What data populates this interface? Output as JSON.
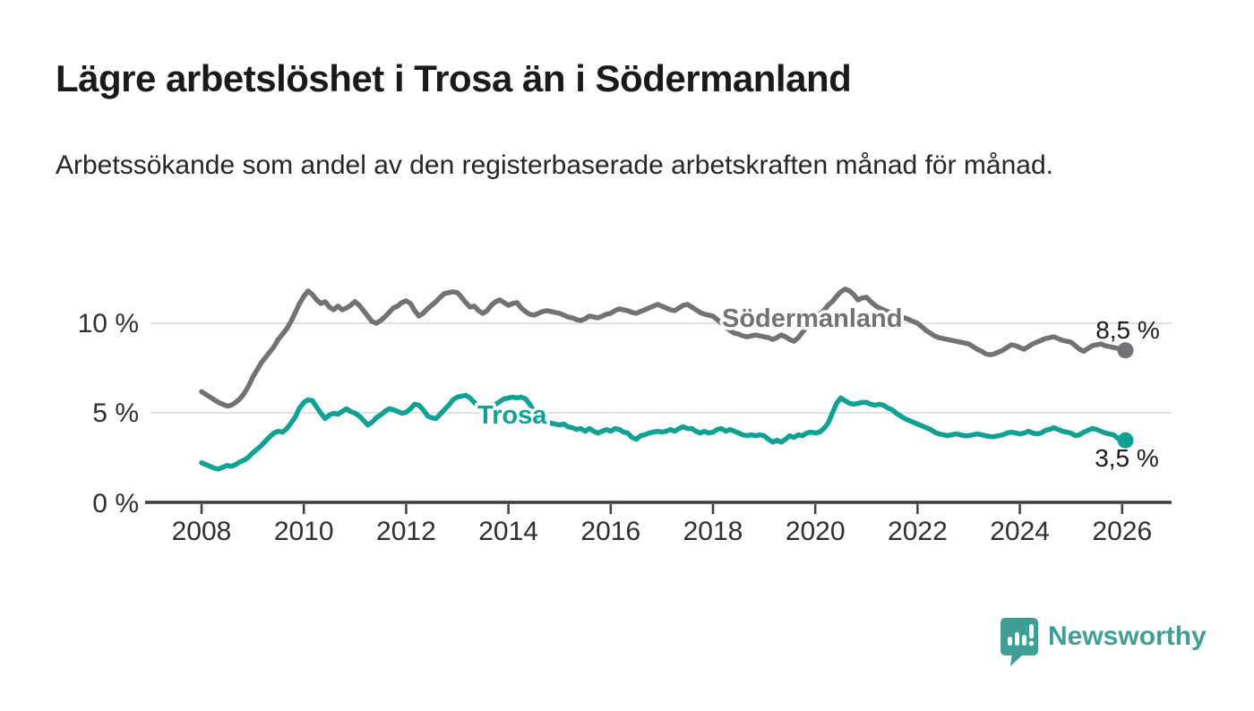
{
  "header": {
    "title": "Lägre arbetslöshet i Trosa än i Södermanland",
    "subtitle": "Arbetssökande som andel av den registerbaserade arbetskraften månad för månad."
  },
  "footer": {
    "brand": "Newsworthy",
    "brand_color": "#3f9f96",
    "logo_icon": "bar-chart-speech-bubble-icon"
  },
  "chart_data": {
    "type": "line",
    "title": "Lägre arbetslöshet i Trosa än i Södermanland",
    "subtitle": "Arbetssökande som andel av den registerbaserade arbetskraften månad för månad.",
    "unit": "percent",
    "frequency": "monthly",
    "start_year": 2008,
    "start_month": 1,
    "end_year": 2026,
    "end_month": 2,
    "grid": "horizontal",
    "legend_position": "inline-labels",
    "x_domain": [
      2006.9,
      2027.0
    ],
    "ylim": [
      0,
      12.8
    ],
    "x_tick_labels": [
      "2008",
      "2010",
      "2012",
      "2014",
      "2016",
      "2018",
      "2020",
      "2022",
      "2024",
      "2026"
    ],
    "y_tick_labels": [
      "0 %",
      "5 %",
      "10 %"
    ],
    "y_tick_values": [
      0,
      5,
      10
    ],
    "series": [
      {
        "name": "Södermanland",
        "color": "#717275",
        "end_label": "8,5 %",
        "end_value": 8.5,
        "values": [
          6.2,
          6.05,
          5.9,
          5.75,
          5.6,
          5.5,
          5.4,
          5.45,
          5.6,
          5.8,
          6.1,
          6.5,
          7.0,
          7.4,
          7.8,
          8.1,
          8.4,
          8.7,
          9.1,
          9.4,
          9.7,
          10.1,
          10.6,
          11.1,
          11.5,
          11.8,
          11.6,
          11.3,
          11.1,
          11.2,
          10.9,
          10.75,
          10.95,
          10.75,
          10.85,
          11.0,
          11.2,
          11.0,
          10.7,
          10.4,
          10.1,
          10.0,
          10.15,
          10.35,
          10.6,
          10.85,
          10.95,
          11.15,
          11.25,
          11.1,
          10.7,
          10.4,
          10.55,
          10.8,
          11.0,
          11.2,
          11.45,
          11.65,
          11.7,
          11.75,
          11.7,
          11.45,
          11.15,
          10.9,
          10.95,
          10.7,
          10.55,
          10.7,
          11.0,
          11.2,
          11.3,
          11.15,
          11.0,
          11.1,
          11.15,
          10.85,
          10.65,
          10.5,
          10.45,
          10.55,
          10.65,
          10.7,
          10.65,
          10.6,
          10.55,
          10.45,
          10.35,
          10.3,
          10.2,
          10.15,
          10.25,
          10.4,
          10.35,
          10.3,
          10.4,
          10.5,
          10.55,
          10.7,
          10.8,
          10.75,
          10.7,
          10.6,
          10.55,
          10.65,
          10.75,
          10.85,
          10.95,
          11.05,
          10.95,
          10.85,
          10.75,
          10.7,
          10.85,
          11.0,
          11.05,
          10.9,
          10.75,
          10.6,
          10.5,
          10.45,
          10.4,
          10.2,
          10.0,
          9.8,
          9.6,
          9.45,
          9.4,
          9.3,
          9.25,
          9.3,
          9.35,
          9.3,
          9.25,
          9.2,
          9.1,
          9.2,
          9.35,
          9.25,
          9.1,
          9.0,
          9.2,
          9.5,
          9.8,
          10.1,
          10.4,
          10.5,
          10.7,
          11.0,
          11.2,
          11.5,
          11.75,
          11.9,
          11.8,
          11.6,
          11.3,
          11.4,
          11.45,
          11.2,
          11.0,
          10.85,
          10.75,
          10.65,
          10.55,
          10.45,
          10.35,
          10.3,
          10.2,
          10.1,
          10.0,
          9.8,
          9.6,
          9.45,
          9.3,
          9.2,
          9.15,
          9.1,
          9.05,
          9.0,
          8.95,
          8.9,
          8.85,
          8.7,
          8.55,
          8.45,
          8.3,
          8.25,
          8.3,
          8.4,
          8.5,
          8.65,
          8.8,
          8.75,
          8.65,
          8.55,
          8.7,
          8.85,
          8.95,
          9.05,
          9.15,
          9.2,
          9.25,
          9.15,
          9.05,
          9.0,
          8.95,
          8.75,
          8.55,
          8.45,
          8.6,
          8.75,
          8.8,
          8.85,
          8.75,
          8.7,
          8.65,
          8.6,
          8.55,
          8.5
        ]
      },
      {
        "name": "Trosa",
        "color": "#0fa294",
        "end_label": "3,5 %",
        "end_value": 3.5,
        "values": [
          2.25,
          2.15,
          2.05,
          1.95,
          1.9,
          2.0,
          2.1,
          2.05,
          2.15,
          2.3,
          2.4,
          2.55,
          2.8,
          3.0,
          3.2,
          3.45,
          3.7,
          3.9,
          4.0,
          3.95,
          4.15,
          4.45,
          4.8,
          5.3,
          5.6,
          5.75,
          5.7,
          5.35,
          5.0,
          4.7,
          4.9,
          5.0,
          4.95,
          5.1,
          5.25,
          5.1,
          5.0,
          4.85,
          4.6,
          4.35,
          4.5,
          4.75,
          4.9,
          5.1,
          5.25,
          5.2,
          5.1,
          5.0,
          5.05,
          5.25,
          5.5,
          5.45,
          5.2,
          4.85,
          4.75,
          4.7,
          4.95,
          5.2,
          5.45,
          5.75,
          5.9,
          5.95,
          6.0,
          5.85,
          5.6,
          5.35,
          5.15,
          5.2,
          5.35,
          5.5,
          5.65,
          5.8,
          5.85,
          5.9,
          5.85,
          5.9,
          5.8,
          5.5,
          5.1,
          4.75,
          4.55,
          4.5,
          4.45,
          4.4,
          4.35,
          4.4,
          4.25,
          4.2,
          4.1,
          4.15,
          4.0,
          4.15,
          4.0,
          3.9,
          4.0,
          4.1,
          4.0,
          4.15,
          4.1,
          3.95,
          3.9,
          3.65,
          3.55,
          3.75,
          3.8,
          3.9,
          3.95,
          4.0,
          3.95,
          4.0,
          4.1,
          4.0,
          4.15,
          4.25,
          4.15,
          4.15,
          4.0,
          3.9,
          4.0,
          3.9,
          3.95,
          4.1,
          4.15,
          4.0,
          4.1,
          4.0,
          3.9,
          3.8,
          3.75,
          3.8,
          3.75,
          3.8,
          3.75,
          3.55,
          3.4,
          3.5,
          3.4,
          3.55,
          3.75,
          3.65,
          3.8,
          3.75,
          3.9,
          3.95,
          3.9,
          3.95,
          4.15,
          4.45,
          5.0,
          5.55,
          5.85,
          5.7,
          5.55,
          5.5,
          5.55,
          5.6,
          5.6,
          5.5,
          5.45,
          5.5,
          5.45,
          5.3,
          5.2,
          5.0,
          4.85,
          4.7,
          4.6,
          4.5,
          4.4,
          4.3,
          4.2,
          4.1,
          3.95,
          3.85,
          3.8,
          3.75,
          3.8,
          3.85,
          3.8,
          3.75,
          3.75,
          3.8,
          3.85,
          3.8,
          3.75,
          3.7,
          3.7,
          3.75,
          3.8,
          3.9,
          3.95,
          3.9,
          3.85,
          3.9,
          4.0,
          3.9,
          3.85,
          3.9,
          4.05,
          4.1,
          4.2,
          4.1,
          4.0,
          3.95,
          3.9,
          3.75,
          3.8,
          3.95,
          4.05,
          4.15,
          4.1,
          4.0,
          3.9,
          3.85,
          3.8,
          3.6,
          3.55,
          3.5
        ]
      }
    ]
  }
}
